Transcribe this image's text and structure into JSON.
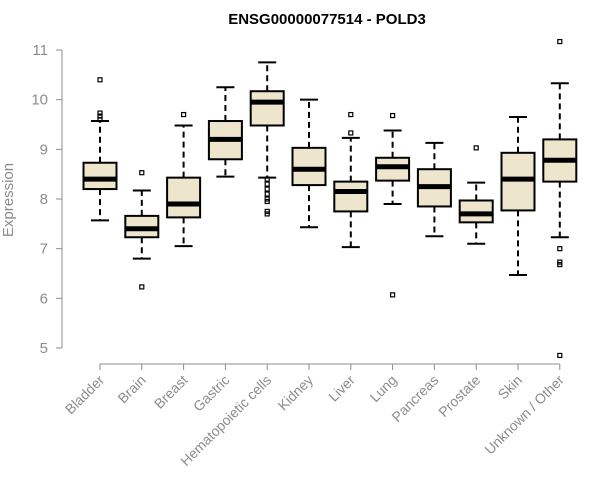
{
  "chart_data": {
    "type": "box",
    "title": "ENSG00000077514 - POLD3",
    "xlabel": "",
    "ylabel": "Expression",
    "ylim": [
      4.75,
      11.2
    ],
    "yticks": [
      5,
      6,
      7,
      8,
      9,
      10,
      11
    ],
    "grid": false,
    "legend": "none",
    "colors": {
      "box_fill": "#ede6cc",
      "stroke": "#000000",
      "axis": "#8c8c8c"
    },
    "categories": [
      "Bladder",
      "Brain",
      "Breast",
      "Gastric",
      "Hematopoietic cells",
      "Kidney",
      "Liver",
      "Lung",
      "Pancreas",
      "Prostate",
      "Skin",
      "Unknown / Other"
    ],
    "boxes": [
      {
        "category": "Bladder",
        "q1": 8.2,
        "median": 8.4,
        "q3": 8.73,
        "whisker_low": 7.57,
        "whisker_high": 9.57,
        "outliers": [
          10.4,
          9.73,
          9.67,
          9.6
        ]
      },
      {
        "category": "Brain",
        "q1": 7.23,
        "median": 7.4,
        "q3": 7.66,
        "whisker_low": 6.8,
        "whisker_high": 8.17,
        "outliers": [
          8.53,
          6.23
        ]
      },
      {
        "category": "Breast",
        "q1": 7.63,
        "median": 7.9,
        "q3": 8.43,
        "whisker_low": 7.05,
        "whisker_high": 9.48,
        "outliers": [
          9.7
        ]
      },
      {
        "category": "Gastric",
        "q1": 8.8,
        "median": 9.2,
        "q3": 9.57,
        "whisker_low": 8.45,
        "whisker_high": 10.25,
        "outliers": []
      },
      {
        "category": "Hematopoietic cells",
        "q1": 9.48,
        "median": 9.95,
        "q3": 10.17,
        "whisker_low": 8.43,
        "whisker_high": 10.75,
        "outliers": [
          8.4,
          8.3,
          8.2,
          8.1,
          8.0,
          7.95,
          7.75,
          7.7
        ]
      },
      {
        "category": "Kidney",
        "q1": 8.28,
        "median": 8.6,
        "q3": 9.03,
        "whisker_low": 7.43,
        "whisker_high": 10.0,
        "outliers": []
      },
      {
        "category": "Liver",
        "q1": 7.75,
        "median": 8.15,
        "q3": 8.35,
        "whisker_low": 7.03,
        "whisker_high": 9.23,
        "outliers": [
          9.7,
          9.33
        ]
      },
      {
        "category": "Lung",
        "q1": 8.37,
        "median": 8.65,
        "q3": 8.83,
        "whisker_low": 7.9,
        "whisker_high": 9.38,
        "outliers": [
          9.68,
          6.07
        ]
      },
      {
        "category": "Pancreas",
        "q1": 7.85,
        "median": 8.25,
        "q3": 8.6,
        "whisker_low": 7.25,
        "whisker_high": 9.13,
        "outliers": []
      },
      {
        "category": "Prostate",
        "q1": 7.53,
        "median": 7.7,
        "q3": 7.97,
        "whisker_low": 7.1,
        "whisker_high": 8.33,
        "outliers": [
          9.03
        ]
      },
      {
        "category": "Skin",
        "q1": 7.77,
        "median": 8.4,
        "q3": 8.93,
        "whisker_low": 6.47,
        "whisker_high": 9.65,
        "outliers": []
      },
      {
        "category": "Unknown / Other",
        "q1": 8.35,
        "median": 8.78,
        "q3": 9.2,
        "whisker_low": 7.23,
        "whisker_high": 10.33,
        "outliers": [
          11.17,
          7.0,
          6.73,
          6.68,
          4.85
        ]
      }
    ]
  }
}
